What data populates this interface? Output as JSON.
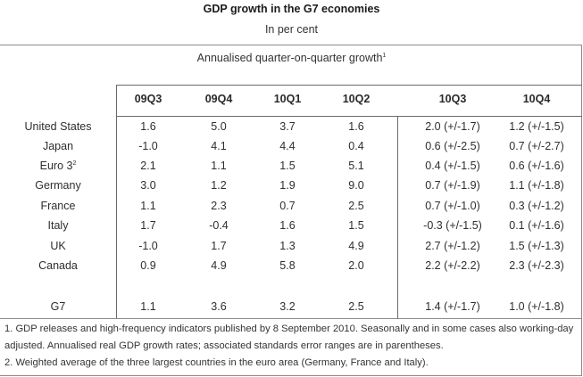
{
  "title": "GDP growth in the G7 economies",
  "subtitle": "In per cent",
  "panel": {
    "title": "Annualised quarter-on-quarter growth",
    "title_footnote_mark": "1"
  },
  "columns": [
    "09Q3",
    "09Q4",
    "10Q1",
    "10Q2",
    "10Q3",
    "10Q4"
  ],
  "rows": [
    {
      "label": "United States",
      "footnote": "",
      "values": [
        "1.6",
        "5.0",
        "3.7",
        "1.6",
        "2.0 (+/-1.7)",
        "1.2 (+/-1.5)"
      ]
    },
    {
      "label": "Japan",
      "footnote": "",
      "values": [
        "-1.0",
        "4.1",
        "4.4",
        "0.4",
        "0.6 (+/-2.5)",
        "0.7 (+/-2.7)"
      ]
    },
    {
      "label": "Euro 3",
      "footnote": "2",
      "values": [
        "2.1",
        "1.1",
        "1.5",
        "5.1",
        "0.4 (+/-1.5)",
        "0.6 (+/-1.6)"
      ]
    },
    {
      "label": "Germany",
      "footnote": "",
      "values": [
        "3.0",
        "1.2",
        "1.9",
        "9.0",
        "0.7 (+/-1.9)",
        "1.1 (+/-1.8)"
      ]
    },
    {
      "label": "France",
      "footnote": "",
      "values": [
        "1.1",
        "2.3",
        "0.7",
        "2.5",
        "0.7 (+/-1.0)",
        "0.3 (+/-1.2)"
      ]
    },
    {
      "label": "Italy",
      "footnote": "",
      "values": [
        "1.7",
        "-0.4",
        "1.6",
        "1.5",
        "-0.3 (+/-1.5)",
        "0.1 (+/-1.6)"
      ]
    },
    {
      "label": "UK",
      "footnote": "",
      "values": [
        "-1.0",
        "1.7",
        "1.3",
        "4.9",
        "2.7 (+/-1.2)",
        "1.5 (+/-1.3)"
      ]
    },
    {
      "label": "Canada",
      "footnote": "",
      "values": [
        "0.9",
        "4.9",
        "5.8",
        "2.0",
        "2.2 (+/-2.2)",
        "2.3 (+/-2.3)"
      ]
    }
  ],
  "total_row": {
    "label": "G7",
    "values": [
      "1.1",
      "3.6",
      "3.2",
      "2.5",
      "1.4 (+/-1.7)",
      "1.0 (+/-1.8)"
    ]
  },
  "footnotes": [
    "1. GDP releases and high-frequency indicators published by 8 September 2010.  Seasonally and in some cases also working-day adjusted.  Annualised real GDP growth rates; associated standards error ranges are in parentheses.",
    "2. Weighted average of the three largest countries in the euro area (Germany, France and Italy)."
  ]
}
